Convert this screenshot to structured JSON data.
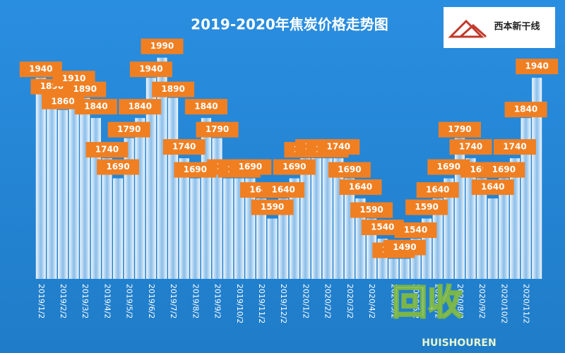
{
  "chart_data": {
    "type": "bar",
    "title": "2019-2020年焦炭价格走势图",
    "logo": "西本新干线",
    "watermark": {
      "text": "回收",
      "sub": "HUISHOUREN"
    },
    "categories": [
      "2019/1/2",
      null,
      "2019/2/2",
      null,
      "2019/3/2",
      null,
      "2019/4/2",
      null,
      "2019/5/2",
      null,
      "2019/6/2",
      null,
      "2019/7/2",
      null,
      "2019/8/2",
      null,
      "2019/9/2",
      null,
      "2019/10/2",
      null,
      "2019/11/2",
      null,
      "2019/12/2",
      null,
      "2020/1/2",
      null,
      "2020/2/2",
      null,
      "2020/3/2",
      null,
      "2020/4/2",
      null,
      "2020/5/2",
      null,
      "2020/6/2",
      null,
      "2020/7/2",
      null,
      "2020/8/2",
      null,
      "2020/9/2",
      null,
      "2020/10/2",
      null,
      "2020/11/2",
      null
    ],
    "values": [
      1940,
      1890,
      1860,
      1910,
      1890,
      1840,
      1740,
      1690,
      1790,
      1840,
      1940,
      1990,
      1890,
      1740,
      1690,
      1840,
      1790,
      1690,
      1690,
      1690,
      1640,
      1590,
      1640,
      1690,
      1740,
      1740,
      1740,
      1740,
      1690,
      1640,
      1590,
      1540,
      1490,
      1490,
      1540,
      1590,
      1640,
      1690,
      1790,
      1740,
      1690,
      1640,
      1690,
      1740,
      1840,
      1940
    ],
    "ylim": [
      1440,
      2000
    ],
    "color": "#ffffff",
    "label_color": "#f07f22"
  }
}
